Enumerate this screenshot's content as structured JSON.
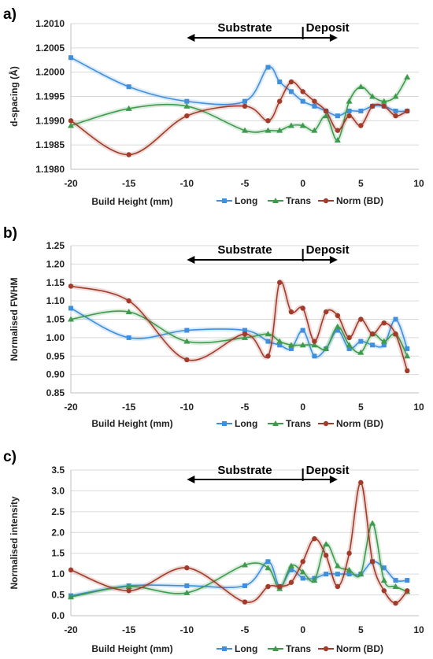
{
  "chart_data": [
    {
      "panel": "a)",
      "type": "line",
      "ylabel": "d-spacing (Å)",
      "xlabel": "Build Height (mm)",
      "xlim": [
        -20,
        10
      ],
      "xticks": [
        -20,
        -15,
        -10,
        -5,
        0,
        5,
        10
      ],
      "ylim": [
        1.198,
        1.201
      ],
      "yticks": [
        1.198,
        1.1985,
        1.199,
        1.1995,
        1.2,
        1.2005,
        1.201
      ],
      "ytick_labels": [
        "1.1980",
        "1.1985",
        "1.1990",
        "1.1995",
        "1.2000",
        "1.2005",
        "1.2010"
      ],
      "grid": "horizontal",
      "legend": "bottom",
      "annotations": {
        "substrate": "Substrate",
        "deposit": "Deposit"
      },
      "series": [
        {
          "name": "Long",
          "color": "#3f8fdc",
          "marker": "square",
          "x": [
            -20,
            -15,
            -10,
            -5,
            -3,
            -2,
            -1,
            0,
            1,
            2,
            3,
            4,
            5,
            6,
            7,
            8,
            9
          ],
          "y": [
            1.2003,
            1.1997,
            1.1994,
            1.1994,
            1.2001,
            1.1998,
            1.1996,
            1.1994,
            1.1993,
            1.1992,
            1.1991,
            1.1992,
            1.1992,
            1.1993,
            1.1993,
            1.1992,
            1.1992
          ]
        },
        {
          "name": "Trans",
          "color": "#3e9a4c",
          "marker": "triangle",
          "x": [
            -20,
            -15,
            -10,
            -5,
            -3,
            -2,
            -1,
            0,
            1,
            2,
            3,
            4,
            5,
            6,
            7,
            8,
            9
          ],
          "y": [
            1.1989,
            1.19925,
            1.1993,
            1.1988,
            1.1988,
            1.1988,
            1.1989,
            1.1989,
            1.1988,
            1.1991,
            1.1986,
            1.1994,
            1.1997,
            1.1995,
            1.1994,
            1.1995,
            1.1999
          ]
        },
        {
          "name": "Norm (BD)",
          "color": "#a23b2a",
          "marker": "circle",
          "x": [
            -20,
            -15,
            -10,
            -5,
            -3,
            -2,
            -1,
            0,
            1,
            2,
            3,
            4,
            5,
            6,
            7,
            8,
            9
          ],
          "y": [
            1.199,
            1.1983,
            1.1991,
            1.1993,
            1.199,
            1.1994,
            1.1998,
            1.1996,
            1.1994,
            1.1992,
            1.1988,
            1.1991,
            1.1989,
            1.1993,
            1.1993,
            1.1991,
            1.1992
          ]
        }
      ]
    },
    {
      "panel": "b)",
      "type": "line",
      "ylabel": "Normalised FWHM",
      "xlabel": "Build Height (mm)",
      "xlim": [
        -20,
        10
      ],
      "xticks": [
        -20,
        -15,
        -10,
        -5,
        0,
        5,
        10
      ],
      "ylim": [
        0.85,
        1.25
      ],
      "yticks": [
        0.85,
        0.9,
        0.95,
        1.0,
        1.05,
        1.1,
        1.15,
        1.2,
        1.25
      ],
      "ytick_labels": [
        "0.85",
        "0.90",
        "0.95",
        "1.00",
        "1.05",
        "1.10",
        "1.15",
        "1.20",
        "1.25"
      ],
      "grid": "horizontal",
      "legend": "bottom",
      "annotations": {
        "substrate": "Substrate",
        "deposit": "Deposit"
      },
      "series": [
        {
          "name": "Long",
          "color": "#3f8fdc",
          "marker": "square",
          "x": [
            -20,
            -15,
            -10,
            -5,
            -3,
            -2,
            -1,
            0,
            1,
            2,
            3,
            4,
            5,
            6,
            7,
            8,
            9
          ],
          "y": [
            1.08,
            1.0,
            1.02,
            1.02,
            0.99,
            0.98,
            0.97,
            1.02,
            0.95,
            0.97,
            1.02,
            0.97,
            0.99,
            0.98,
            0.98,
            1.05,
            0.97
          ]
        },
        {
          "name": "Trans",
          "color": "#3e9a4c",
          "marker": "triangle",
          "x": [
            -20,
            -15,
            -10,
            -5,
            -3,
            -2,
            -1,
            0,
            1,
            2,
            3,
            4,
            5,
            6,
            7,
            8,
            9
          ],
          "y": [
            1.05,
            1.07,
            0.99,
            1.0,
            1.01,
            0.99,
            0.98,
            0.98,
            0.98,
            0.97,
            1.03,
            0.98,
            0.96,
            1.01,
            0.99,
            1.01,
            0.95
          ]
        },
        {
          "name": "Norm (BD)",
          "color": "#a23b2a",
          "marker": "circle",
          "x": [
            -20,
            -15,
            -10,
            -5,
            -3,
            -2,
            -1,
            0,
            1,
            2,
            3,
            4,
            5,
            6,
            7,
            8,
            9
          ],
          "y": [
            1.14,
            1.1,
            0.94,
            1.01,
            0.95,
            1.15,
            1.07,
            1.08,
            0.99,
            1.07,
            1.06,
            1.0,
            1.05,
            1.01,
            1.04,
            1.01,
            0.91
          ]
        }
      ]
    },
    {
      "panel": "c)",
      "type": "line",
      "ylabel": "Normalised intensity",
      "xlabel": "Build Height (mm)",
      "xlim": [
        -20,
        10
      ],
      "xticks": [
        -20,
        -15,
        -10,
        -5,
        0,
        5,
        10
      ],
      "ylim": [
        0.0,
        3.5
      ],
      "yticks": [
        0.0,
        0.5,
        1.0,
        1.5,
        2.0,
        2.5,
        3.0,
        3.5
      ],
      "ytick_labels": [
        "0.0",
        "0.5",
        "1.0",
        "1.5",
        "2.0",
        "2.5",
        "3.0",
        "3.5"
      ],
      "grid": "horizontal",
      "legend": "bottom",
      "annotations": {
        "substrate": "Substrate",
        "deposit": "Deposit"
      },
      "series": [
        {
          "name": "Long",
          "color": "#3f8fdc",
          "marker": "square",
          "x": [
            -20,
            -15,
            -10,
            -5,
            -3,
            -2,
            -1,
            0,
            1,
            2,
            3,
            4,
            5,
            6,
            7,
            8,
            9
          ],
          "y": [
            0.48,
            0.72,
            0.72,
            0.72,
            1.3,
            0.7,
            1.1,
            0.9,
            0.9,
            1.0,
            1.0,
            1.0,
            1.0,
            1.3,
            1.15,
            0.85,
            0.85
          ]
        },
        {
          "name": "Trans",
          "color": "#3e9a4c",
          "marker": "triangle",
          "x": [
            -20,
            -15,
            -10,
            -5,
            -3,
            -2,
            -1,
            0,
            1,
            2,
            3,
            4,
            5,
            6,
            7,
            8,
            9
          ],
          "y": [
            0.45,
            0.7,
            0.55,
            1.22,
            1.15,
            0.65,
            1.2,
            1.05,
            0.85,
            1.72,
            1.2,
            1.1,
            1.0,
            2.22,
            0.85,
            0.7,
            0.58
          ]
        },
        {
          "name": "Norm (BD)",
          "color": "#a23b2a",
          "marker": "circle",
          "x": [
            -20,
            -15,
            -10,
            -5,
            -3,
            -2,
            -1,
            0,
            1,
            2,
            3,
            4,
            5,
            6,
            7,
            8,
            9
          ],
          "y": [
            1.1,
            0.6,
            1.15,
            0.33,
            0.7,
            0.7,
            0.8,
            1.3,
            1.85,
            1.45,
            0.7,
            1.5,
            3.2,
            1.3,
            0.6,
            0.3,
            0.6
          ]
        }
      ]
    }
  ]
}
